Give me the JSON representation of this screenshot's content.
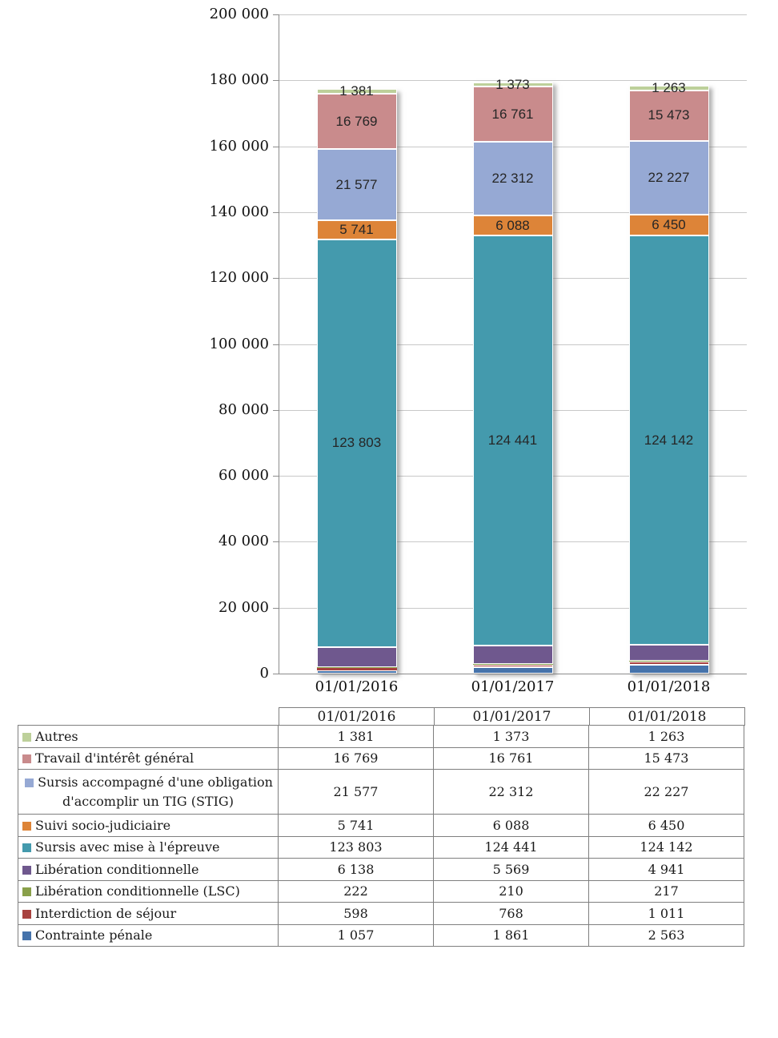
{
  "chart_data": {
    "type": "bar",
    "stacked": true,
    "title": "",
    "categories": [
      "01/01/2016",
      "01/01/2017",
      "01/01/2018"
    ],
    "series": [
      {
        "name": "Contrainte pénale",
        "color": "#4573ab",
        "values": [
          1057,
          1861,
          2563
        ],
        "labels_visible": false
      },
      {
        "name": "Interdiction de séjour",
        "color": "#a8423f",
        "values": [
          598,
          768,
          1011
        ],
        "labels_visible": false
      },
      {
        "name": "Libération conditionnelle (LSC)",
        "color": "#89a04a",
        "values": [
          222,
          210,
          217
        ],
        "labels_visible": false
      },
      {
        "name": "Libération conditionnelle",
        "color": "#6f588e",
        "values": [
          6138,
          5569,
          4941
        ],
        "labels_visible": false
      },
      {
        "name": "Sursis avec mise à l'épreuve",
        "color": "#449aad",
        "values": [
          123803,
          124441,
          124142
        ],
        "labels_visible": true
      },
      {
        "name": "Suivi socio-judiciaire",
        "color": "#dd8438",
        "values": [
          5741,
          6088,
          6450
        ],
        "labels_visible": true
      },
      {
        "name": "Sursis accompagné d'une obligation d'accomplir un TIG (STIG)",
        "color": "#96a9d4",
        "values": [
          21577,
          22312,
          22227
        ],
        "labels_visible": true
      },
      {
        "name": "Travail d'intérêt général",
        "color": "#c98b8c",
        "values": [
          16769,
          16761,
          15473
        ],
        "labels_visible": true
      },
      {
        "name": "Autres",
        "color": "#bdd09a",
        "values": [
          1381,
          1373,
          1263
        ],
        "labels_visible": true
      }
    ],
    "ylim": [
      0,
      200000
    ],
    "ytick_step": 20000,
    "ytick_labels": [
      "0",
      "20 000",
      "40 000",
      "60 000",
      "80 000",
      "100 000",
      "120 000",
      "140 000",
      "160 000",
      "180 000",
      "200 000"
    ],
    "grid": true,
    "legend_position": "data-table-left-column"
  },
  "table": {
    "column_headers": [
      "01/01/2016",
      "01/01/2017",
      "01/01/2018"
    ],
    "rows": [
      {
        "label": "Autres",
        "color": "#bdd09a",
        "values": [
          "1 381",
          "1 373",
          "1 263"
        ]
      },
      {
        "label": "Travail d'intérêt général",
        "color": "#c98b8c",
        "values": [
          "16 769",
          "16 761",
          "15 473"
        ]
      },
      {
        "label": "Sursis accompagné d'une obligation d'accomplir un TIG (STIG)",
        "color": "#96a9d4",
        "values": [
          "21 577",
          "22 312",
          "22 227"
        ]
      },
      {
        "label": "Suivi socio-judiciaire",
        "color": "#dd8438",
        "values": [
          "5 741",
          "6 088",
          "6 450"
        ]
      },
      {
        "label": "Sursis avec mise à l'épreuve",
        "color": "#449aad",
        "values": [
          "123 803",
          "124 441",
          "124 142"
        ]
      },
      {
        "label": "Libération conditionnelle",
        "color": "#6f588e",
        "values": [
          "6 138",
          "5 569",
          "4 941"
        ]
      },
      {
        "label": "Libération conditionnelle (LSC)",
        "color": "#89a04a",
        "values": [
          "222",
          "210",
          "217"
        ]
      },
      {
        "label": "Interdiction de séjour",
        "color": "#a8423f",
        "values": [
          "598",
          "768",
          "1 011"
        ]
      },
      {
        "label": "Contrainte pénale",
        "color": "#4573ab",
        "values": [
          "1 057",
          "1 861",
          "2 563"
        ]
      }
    ]
  }
}
